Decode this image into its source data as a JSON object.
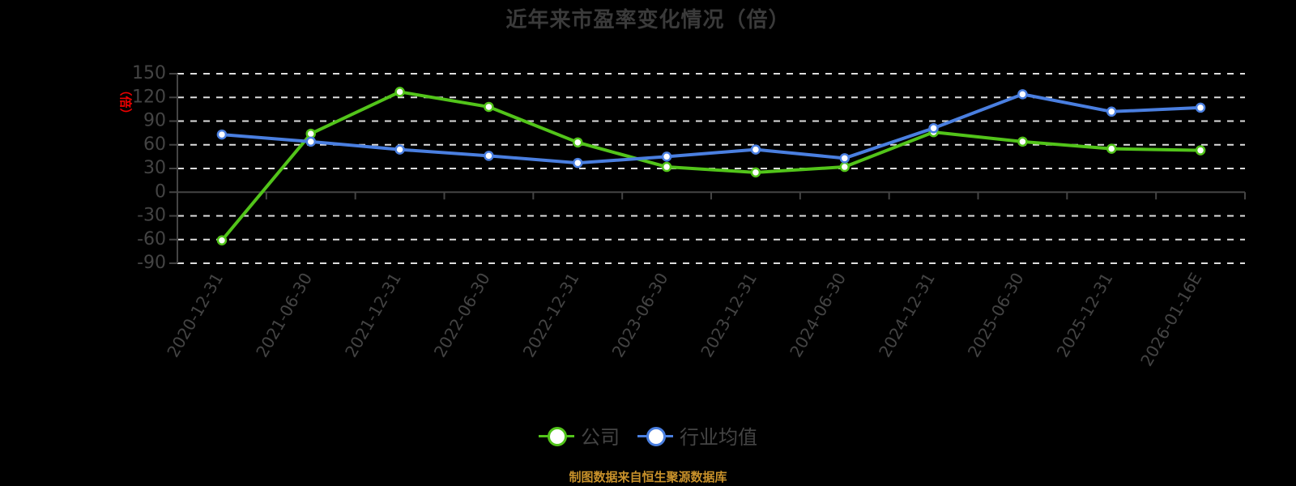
{
  "title": "近年来市盈率变化情况（倍）",
  "footer": "制图数据来自恒生聚源数据库",
  "colors": {
    "company": "#52c41a",
    "industry": "#4a7fe0",
    "axis_text": "#444444",
    "grid": "#dddddd",
    "y_unit": "#ee0000",
    "footer": "#c8912a"
  },
  "legend": [
    {
      "label": "公司",
      "color": "#52c41a"
    },
    {
      "label": "行业均值",
      "color": "#4a7fe0"
    }
  ],
  "chart_data": {
    "type": "line",
    "title": "近年来市盈率变化情况（倍）",
    "xlabel": "",
    "ylabel": "（倍）",
    "ylim": [
      -90,
      150
    ],
    "yticks": [
      150,
      120,
      90,
      60,
      30,
      0,
      -30,
      -60,
      -90
    ],
    "grid": true,
    "legend_position": "bottom",
    "categories": [
      "2020-12-31",
      "2021-06-30",
      "2021-12-31",
      "2022-06-30",
      "2022-12-31",
      "2023-06-30",
      "2023-12-31",
      "2024-06-30",
      "2024-12-31",
      "2025-06-30",
      "2025-12-31",
      "2026-01-16E"
    ],
    "series": [
      {
        "name": "公司",
        "color": "#52c41a",
        "values": [
          -61,
          74,
          127,
          108,
          63,
          32,
          25,
          32,
          76,
          64,
          55,
          53
        ]
      },
      {
        "name": "行业均值",
        "color": "#4a7fe0",
        "values": [
          73,
          64,
          54,
          46,
          37,
          45,
          54,
          43,
          81,
          124,
          102,
          107
        ]
      }
    ]
  }
}
